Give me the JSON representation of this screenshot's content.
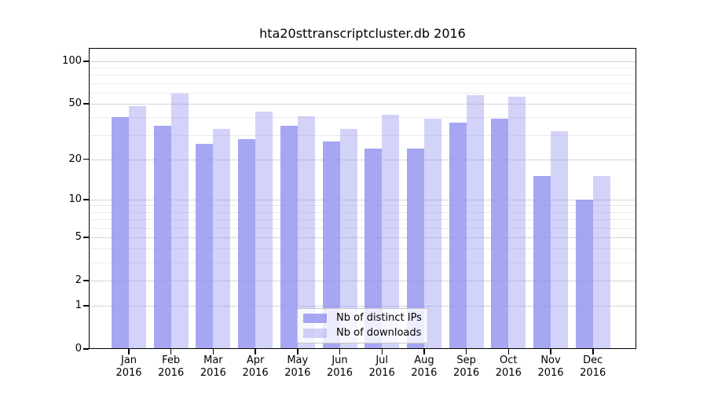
{
  "title": "hta20sttranscriptcluster.db 2016",
  "colors": {
    "bar_distinct_ips": "rgba(150,150,240,0.85)",
    "bar_downloads": "rgba(150,150,240,0.42)",
    "gridline_major": "#d4d4d4",
    "gridline_minor": "#ebebeb",
    "axis": "#000000",
    "text": "#000000",
    "legend_border": "#c8c8c8"
  },
  "legend": {
    "items": [
      {
        "label": "Nb of distinct IPs",
        "color_key": "bar_distinct_ips"
      },
      {
        "label": "Nb of downloads",
        "color_key": "bar_downloads"
      }
    ]
  },
  "chart_data": {
    "type": "bar",
    "title": "hta20sttranscriptcluster.db 2016",
    "scale": "log1p",
    "categories": [
      "Jan 2016",
      "Feb 2016",
      "Mar 2016",
      "Apr 2016",
      "May 2016",
      "Jun 2016",
      "Jul 2016",
      "Aug 2016",
      "Sep 2016",
      "Oct 2016",
      "Nov 2016",
      "Dec 2016"
    ],
    "series": [
      {
        "name": "Nb of distinct IPs",
        "values": [
          40,
          35,
          26,
          28,
          35,
          27,
          24,
          24,
          37,
          39,
          15,
          10
        ]
      },
      {
        "name": "Nb of downloads",
        "values": [
          48,
          59,
          33,
          44,
          41,
          33,
          42,
          39,
          58,
          56,
          32,
          15
        ]
      }
    ],
    "y_ticks": [
      0,
      1,
      2,
      5,
      10,
      20,
      50,
      100
    ],
    "gridlines_major": [
      1,
      2,
      5,
      10,
      20,
      50,
      100
    ],
    "gridlines_minor": [
      3,
      4,
      6,
      7,
      8,
      9,
      30,
      40,
      60,
      70,
      80,
      90
    ],
    "ylim": [
      0,
      124
    ],
    "xlabel": "",
    "ylabel": "",
    "grid": true,
    "legend_position": "lower center"
  }
}
